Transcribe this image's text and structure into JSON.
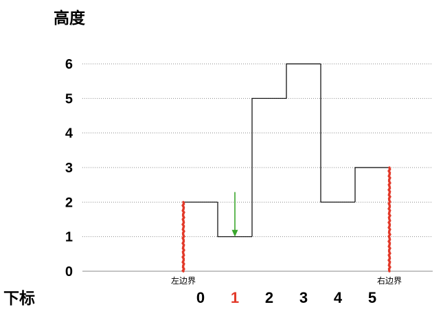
{
  "chart_data": {
    "type": "bar",
    "xlabel": "下标",
    "ylabel": "高度",
    "categories": [
      "0",
      "1",
      "2",
      "3",
      "4",
      "5"
    ],
    "values": [
      2,
      1,
      5,
      6,
      2,
      3
    ],
    "ylim": [
      0,
      6
    ],
    "yticks": [
      0,
      1,
      2,
      3,
      4,
      5,
      6
    ],
    "grid": true,
    "highlight_index": 1,
    "annotations": {
      "left_boundary": {
        "text": "左边界",
        "index": 0
      },
      "right_boundary": {
        "text": "右边界",
        "index": 5
      },
      "arrow_index": 1
    }
  },
  "colors": {
    "background": "#ffffff",
    "outline": "#000000",
    "grid": "#8a8a8a",
    "boundary": "#e23a2a",
    "highlight": "#e23a2a",
    "arrow": "#3aa62c",
    "text": "#000000"
  }
}
